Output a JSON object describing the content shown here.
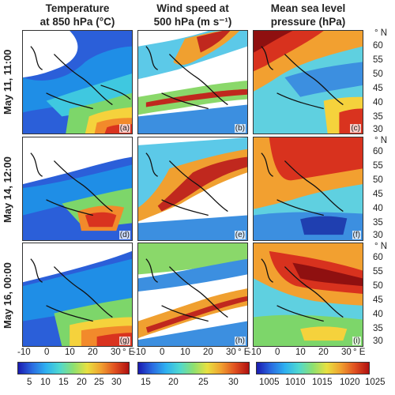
{
  "headers": [
    {
      "line1": "Temperature",
      "line2": "at 850 hPa (°C)"
    },
    {
      "line1": "Wind speed at",
      "line2": "500 hPa  (m s⁻¹)"
    },
    {
      "line1": "Mean sea level",
      "line2": "pressure (hPa)"
    }
  ],
  "rows": [
    "May 11, 11:00",
    "May 14, 12:00",
    "May 16, 00:00"
  ],
  "panels": [
    "(a)",
    "(b)",
    "(c)",
    "(d)",
    "(e)",
    "(f)",
    "(g)",
    "(h)",
    "(i)"
  ],
  "lat_unit": "° N",
  "lat_ticks": [
    "60",
    "55",
    "50",
    "45",
    "40",
    "35",
    "30"
  ],
  "lon_ticks": [
    "-10",
    "0",
    "10",
    "20",
    "30"
  ],
  "lon_unit": "° E",
  "colorbars": [
    {
      "ticks": [
        "5",
        "10",
        "15",
        "20",
        "25",
        "30"
      ]
    },
    {
      "ticks": [
        "15",
        "20",
        "25",
        "30"
      ]
    },
    {
      "ticks": [
        "1005",
        "1010",
        "1015",
        "1020",
        "1025"
      ]
    }
  ]
}
